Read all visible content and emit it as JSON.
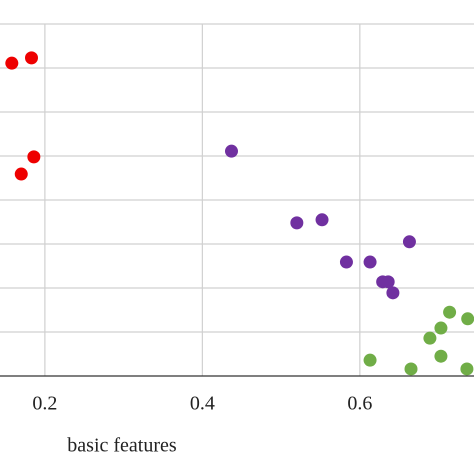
{
  "chart_data": {
    "type": "scatter",
    "x_label": "basic features",
    "xlim": [
      0.143,
      0.745
    ],
    "xticks": [
      0.2,
      0.4,
      0.6
    ],
    "ylim": [
      0,
      0.8
    ],
    "yticks": [
      0.1,
      0.2,
      0.3,
      0.4,
      0.5,
      0.6,
      0.7,
      0.8
    ],
    "grid": true,
    "series": [
      {
        "color": "#ee0000",
        "x": [
          0.158,
          0.183,
          0.186,
          0.17
        ],
        "values": [
          0.711,
          0.723,
          0.498,
          0.459
        ]
      },
      {
        "color": "#7030a0",
        "x": [
          0.437,
          0.52,
          0.552,
          0.583,
          0.613,
          0.663,
          0.629,
          0.636,
          0.642
        ],
        "values": [
          0.511,
          0.348,
          0.355,
          0.259,
          0.259,
          0.305,
          0.214,
          0.214,
          0.189
        ]
      },
      {
        "color": "#70ad47",
        "x": [
          0.613,
          0.665,
          0.689,
          0.703,
          0.714,
          0.703,
          0.737,
          0.736
        ],
        "values": [
          0.036,
          0.016,
          0.086,
          0.109,
          0.145,
          0.045,
          0.13,
          0.016
        ]
      }
    ]
  }
}
